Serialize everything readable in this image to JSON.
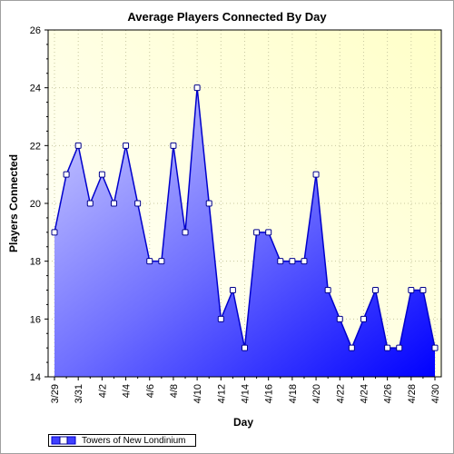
{
  "chart_data": {
    "type": "area",
    "title": "Average Players Connected By Day",
    "xlabel": "Day",
    "ylabel": "Players Connected",
    "x": [
      "3/29",
      "3/30",
      "3/31",
      "4/1",
      "4/2",
      "4/3",
      "4/4",
      "4/5",
      "4/6",
      "4/7",
      "4/8",
      "4/9",
      "4/10",
      "4/11",
      "4/12",
      "4/13",
      "4/14",
      "4/15",
      "4/16",
      "4/17",
      "4/18",
      "4/19",
      "4/20",
      "4/21",
      "4/22",
      "4/23",
      "4/24",
      "4/25",
      "4/26",
      "4/27",
      "4/28",
      "4/29",
      "4/30"
    ],
    "x_tick_labels": [
      "3/29",
      "3/31",
      "4/2",
      "4/4",
      "4/6",
      "4/8",
      "4/10",
      "4/12",
      "4/14",
      "4/16",
      "4/18",
      "4/20",
      "4/22",
      "4/24",
      "4/26",
      "4/28",
      "4/30"
    ],
    "y_ticks": [
      14,
      16,
      18,
      20,
      22,
      24,
      26
    ],
    "ylim": [
      14,
      26
    ],
    "grid": true,
    "legend_position": "bottom-left",
    "series": [
      {
        "name": "Towers of New Londinium",
        "values": [
          19,
          21,
          22,
          20,
          21,
          20,
          22,
          20,
          18,
          18,
          22,
          19,
          24,
          20,
          16,
          17,
          15,
          19,
          19,
          18,
          18,
          18,
          21,
          17,
          16,
          15,
          16,
          17,
          15,
          15,
          17,
          17,
          15
        ]
      }
    ],
    "colors": {
      "plot_background_top": "#ffffd0",
      "plot_background_bottom": "#ffffff",
      "fill_light": "#c8c8ff",
      "fill_dark": "#0000ff",
      "line": "#0000cc",
      "marker_fill": "#ffffff",
      "marker_stroke": "#00008b"
    }
  }
}
